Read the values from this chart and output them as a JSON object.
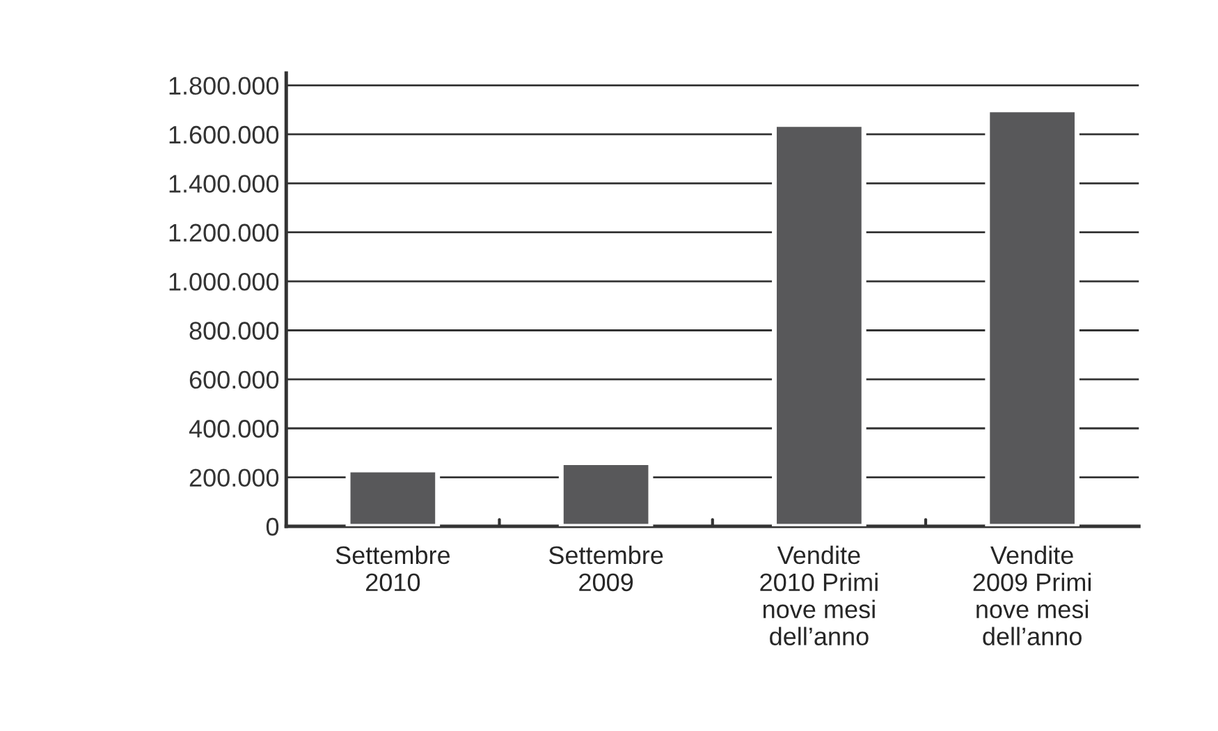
{
  "chart_data": {
    "type": "bar",
    "categories": [
      "Settembre\n2010",
      "Settembre\n2009",
      "Vendite\n2010 Primi\nnove mesi\ndell’anno",
      "Vendite\n2009 Primi\nnove mesi\ndell’anno"
    ],
    "values": [
      230000,
      260000,
      1640000,
      1700000
    ],
    "color": "#58585a",
    "ylim": [
      0,
      1850000
    ],
    "yticks": [
      {
        "value": 0,
        "label": "0"
      },
      {
        "value": 200000,
        "label": "200.000"
      },
      {
        "value": 400000,
        "label": "400.000"
      },
      {
        "value": 600000,
        "label": "600.000"
      },
      {
        "value": 800000,
        "label": "800.000"
      },
      {
        "value": 1000000,
        "label": "1.000.000"
      },
      {
        "value": 1200000,
        "label": "1.200.000"
      },
      {
        "value": 1400000,
        "label": "1.400.000"
      },
      {
        "value": 1600000,
        "label": "1.600.000"
      },
      {
        "value": 1800000,
        "label": "1.800.000"
      }
    ],
    "grid": "y"
  }
}
